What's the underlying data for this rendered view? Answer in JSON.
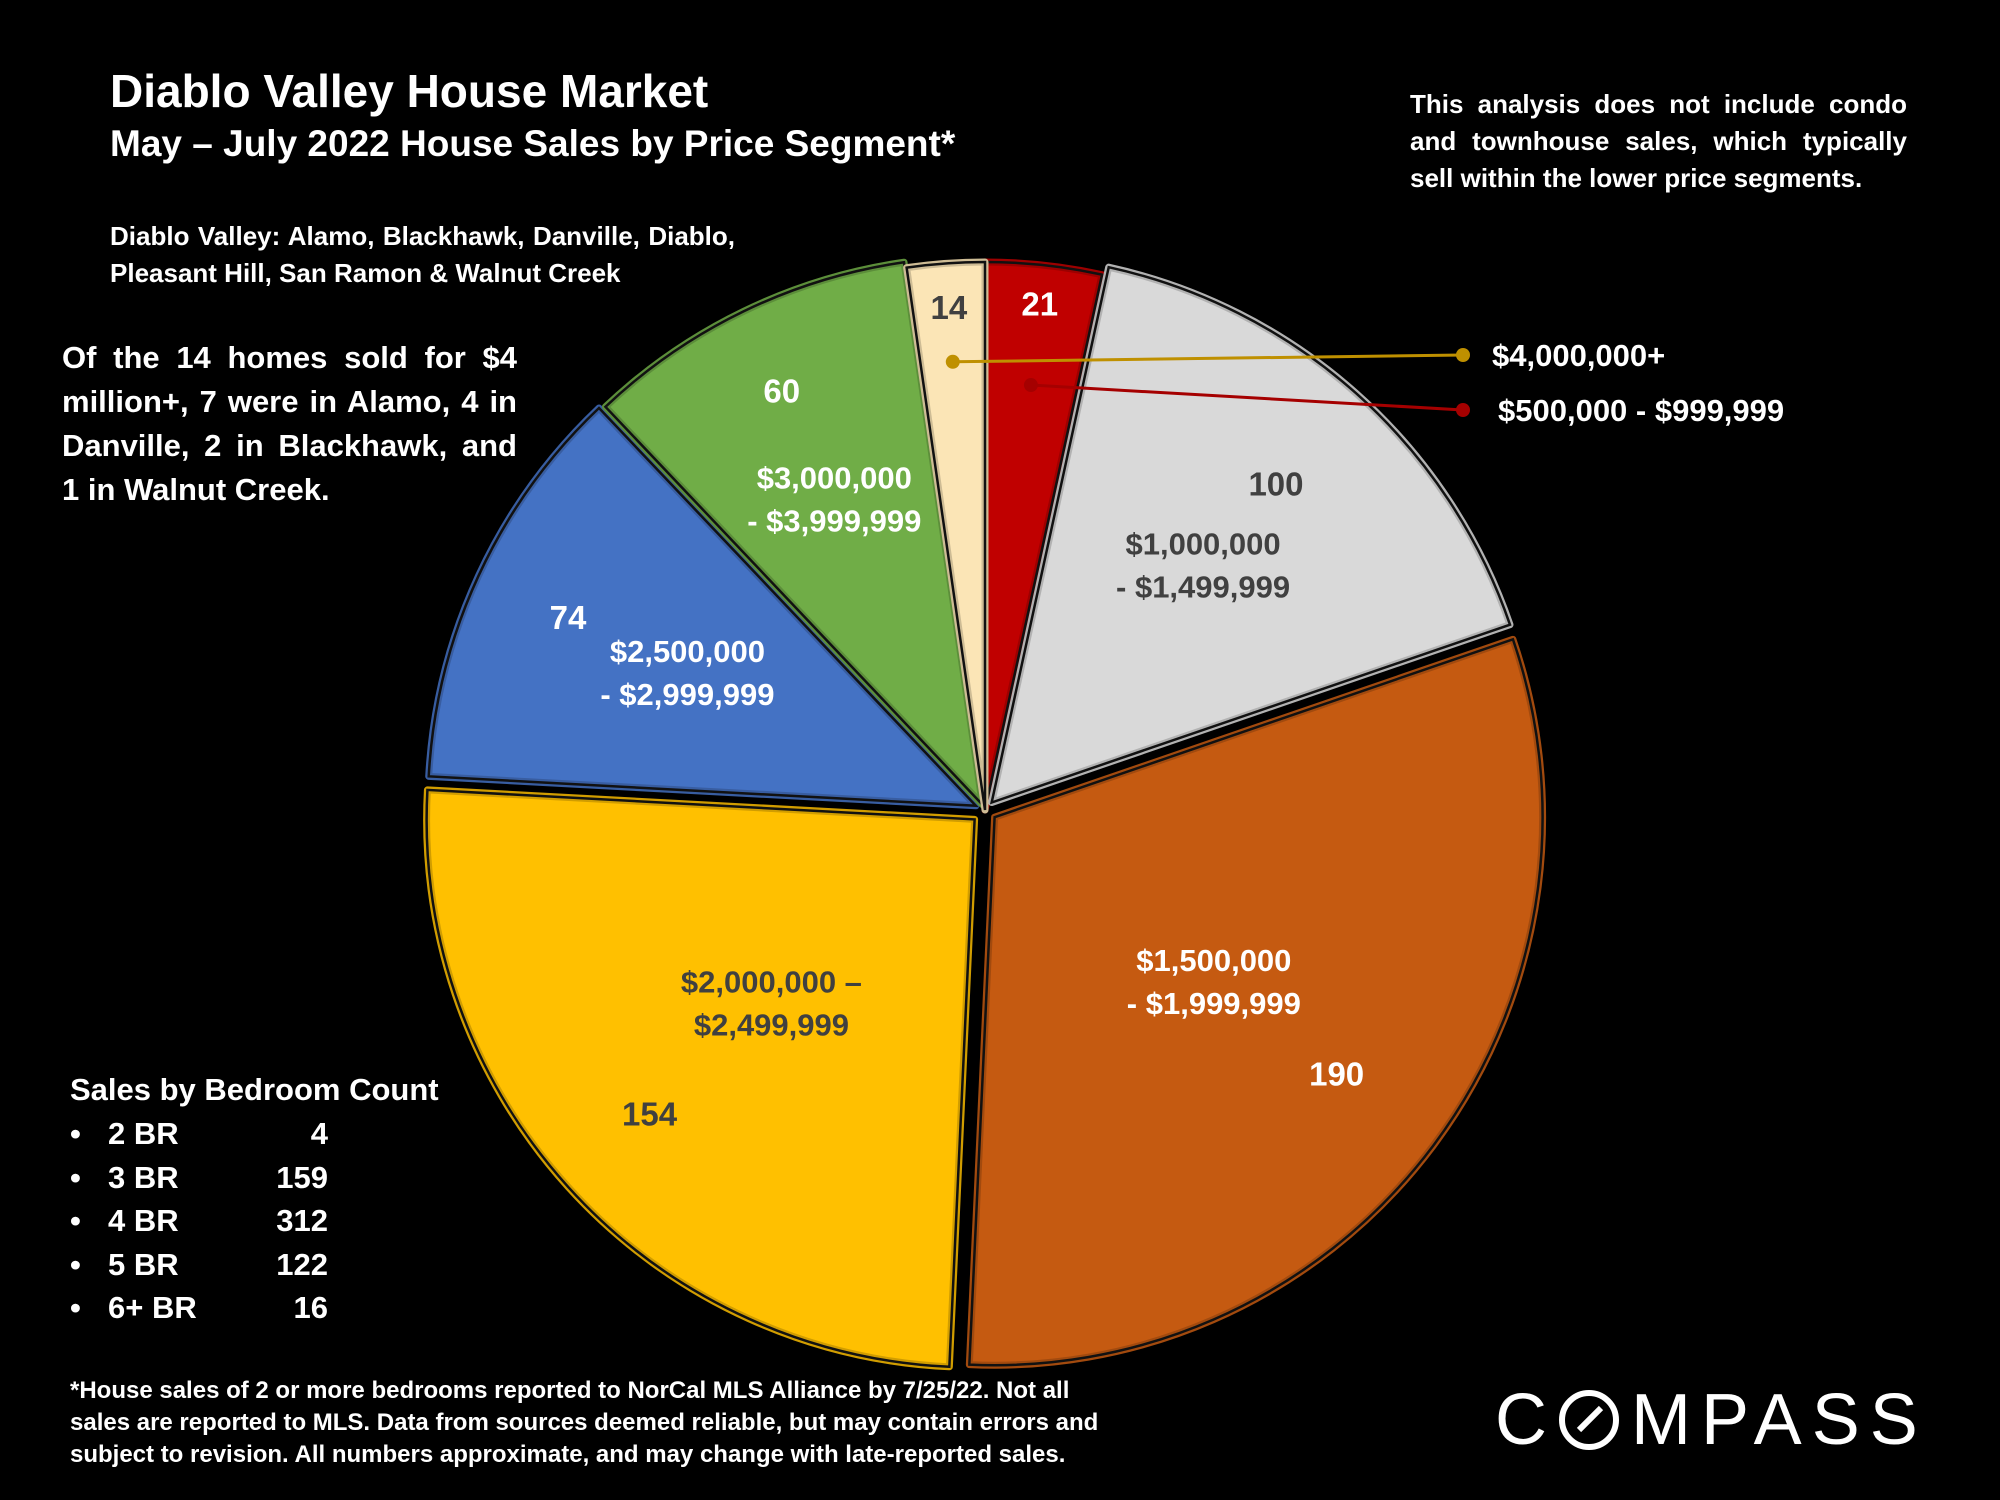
{
  "header": {
    "title": "Diablo Valley House Market",
    "subtitle": "May – July 2022 House Sales by Price Segment*"
  },
  "notes": {
    "region": "Diablo Valley: Alamo, Blackhawk, Danville, Diablo, Pleasant Hill, San Ramon & Walnut Creek",
    "condo": "This analysis does not include condo and townhouse sales, which typically sell within the lower price segments.",
    "luxury": "Of the 14 homes sold for $4 million+, 7 were in Alamo, 4 in Danville, 2 in Blackhawk, and 1 in Walnut Creek."
  },
  "bedrooms": {
    "title": "Sales by Bedroom Count",
    "bullet": "•",
    "rows": [
      {
        "label": "2 BR",
        "count": "4"
      },
      {
        "label": "3 BR",
        "count": "159"
      },
      {
        "label": "4 BR",
        "count": "312"
      },
      {
        "label": "5 BR",
        "count": "122"
      },
      {
        "label": "6+ BR",
        "count": "16"
      }
    ]
  },
  "footnote": "*House sales of 2 or more bedrooms reported to NorCal MLS Alliance by 7/25/22. Not all sales are reported to MLS. Data from sources deemed reliable, but may contain errors and subject to revision. All numbers approximate, and may change with late-reported sales.",
  "logo": "COMPASS",
  "chart_data": {
    "type": "pie",
    "slices": [
      {
        "label": "$500,000 - $999,999",
        "value": 21,
        "color": "#c00000",
        "label_lines": [
          "$500,000 - $999,999"
        ]
      },
      {
        "label": "$1,000,000 - $1,499,999",
        "value": 100,
        "color": "#d9d9d9",
        "label_lines": [
          "$1,000,000",
          "- $1,499,999"
        ]
      },
      {
        "label": "$1,500,000 - $1,999,999",
        "value": 190,
        "color": "#c55a11",
        "label_lines": [
          "$1,500,000",
          "- $1,999,999"
        ]
      },
      {
        "label": "$2,000,000 – $2,499,999",
        "value": 154,
        "color": "#ffc000",
        "label_lines": [
          "$2,000,000 –",
          "$2,499,999"
        ]
      },
      {
        "label": "$2,500,000 - $2,999,999",
        "value": 74,
        "color": "#4472c4",
        "label_lines": [
          "$2,500,000",
          "- $2,999,999"
        ]
      },
      {
        "label": "$3,000,000 - $3,999,999",
        "value": 60,
        "color": "#70ad47",
        "label_lines": [
          "$3,000,000",
          "- $3,999,999"
        ]
      },
      {
        "label": "$4,000,000+",
        "value": 14,
        "color": "#fbe5b6",
        "label_lines": [
          "$4,000,000+"
        ]
      }
    ],
    "callout_colors": {
      "$4,000,000+": "#bf9000",
      "$500,000 - $999,999": "#a50000"
    }
  }
}
